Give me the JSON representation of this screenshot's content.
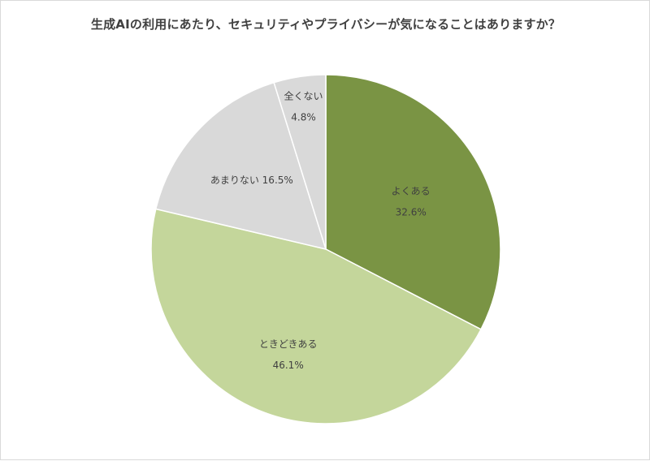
{
  "chart_data": {
    "type": "pie",
    "title": "生成AIの利用にあたり、セキュリティやプライバシーが気になることはありますか？",
    "slices": [
      {
        "label": "よくある",
        "value": 32.6,
        "value_label": "32.6%",
        "color": "#7a9444"
      },
      {
        "label": "ときどきある",
        "value": 46.1,
        "value_label": "46.1%",
        "color": "#c4d69b"
      },
      {
        "label": "あまりない",
        "value": 16.5,
        "value_label": "16.5%",
        "color": "#d9d9d9"
      },
      {
        "label": "全くない",
        "value": 4.8,
        "value_label": "4.8%",
        "color": "#d9d9d9"
      }
    ],
    "legend": "none",
    "start_angle": "12 o'clock",
    "direction": "clockwise"
  }
}
